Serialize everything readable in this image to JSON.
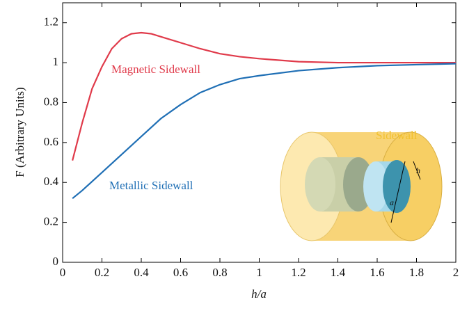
{
  "chart_data": {
    "type": "line",
    "xlabel": "h/a",
    "ylabel": "F (Arbitrary Units)",
    "xlim": [
      0,
      2
    ],
    "xticks": [
      0,
      0.2,
      0.4,
      0.6,
      0.8,
      1,
      1.2,
      1.4,
      1.6,
      1.8,
      2
    ],
    "ylim": [
      0,
      1.3
    ],
    "yticks": [
      0,
      0.2,
      0.4,
      0.6,
      0.8,
      1,
      1.2
    ],
    "series": [
      {
        "name": "Magnetic Sidewall",
        "color": "#e03a4a",
        "x": [
          0.05,
          0.1,
          0.15,
          0.2,
          0.25,
          0.3,
          0.35,
          0.4,
          0.45,
          0.5,
          0.6,
          0.7,
          0.8,
          0.9,
          1.0,
          1.2,
          1.4,
          1.6,
          1.8,
          2.0
        ],
        "values": [
          0.51,
          0.7,
          0.87,
          0.98,
          1.07,
          1.12,
          1.145,
          1.15,
          1.145,
          1.13,
          1.1,
          1.07,
          1.045,
          1.03,
          1.02,
          1.005,
          1.0,
          1.0,
          1.0,
          1.0
        ]
      },
      {
        "name": "Metallic Sidewall",
        "color": "#1f6fb5",
        "x": [
          0.05,
          0.1,
          0.2,
          0.3,
          0.4,
          0.5,
          0.6,
          0.7,
          0.8,
          0.9,
          1.0,
          1.2,
          1.4,
          1.6,
          1.8,
          2.0
        ],
        "values": [
          0.32,
          0.36,
          0.45,
          0.54,
          0.63,
          0.72,
          0.79,
          0.85,
          0.89,
          0.92,
          0.935,
          0.96,
          0.975,
          0.985,
          0.99,
          0.995
        ]
      }
    ],
    "annotations": [
      "Sidewall",
      "h",
      "a"
    ]
  }
}
